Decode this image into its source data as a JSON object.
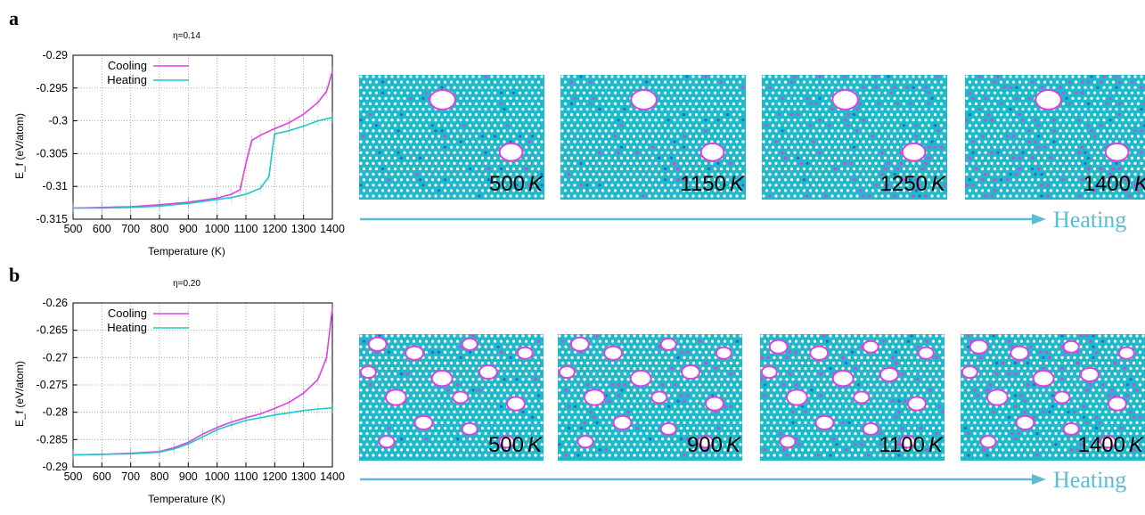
{
  "panels": [
    {
      "letter": "a",
      "heating_label": "Heating"
    },
    {
      "letter": "b",
      "heating_label": "Heating"
    }
  ],
  "colors": {
    "cooling": "#e040e0",
    "heating": "#1ec8c8",
    "arrow": "#5bbcd6",
    "atoms": "#1fb9c9",
    "void_edge": "#e040e0"
  },
  "chart_data": [
    {
      "type": "line",
      "title": "η=0.14",
      "xlabel": "Temperature (K)",
      "ylabel": "E_f (eV/atom)",
      "xlim": [
        500,
        1400
      ],
      "ylim": [
        -0.315,
        -0.29
      ],
      "xticks": [
        500,
        600,
        700,
        800,
        900,
        1000,
        1100,
        1200,
        1300,
        1400
      ],
      "yticks": [
        -0.29,
        -0.295,
        -0.3,
        -0.305,
        -0.31,
        -0.315
      ],
      "ytick_labels": [
        "-0.29",
        "-0.295",
        "-0.3",
        "-0.305",
        "-0.31",
        "-0.315"
      ],
      "grid": true,
      "legend": "top-left",
      "series": [
        {
          "name": "Cooling",
          "x": [
            500,
            600,
            700,
            800,
            900,
            1000,
            1050,
            1080,
            1100,
            1120,
            1150,
            1200,
            1250,
            1300,
            1350,
            1380,
            1400
          ],
          "y": [
            -0.3133,
            -0.3132,
            -0.3131,
            -0.3128,
            -0.3124,
            -0.3118,
            -0.3112,
            -0.3105,
            -0.3065,
            -0.303,
            -0.3022,
            -0.3012,
            -0.3003,
            -0.299,
            -0.2972,
            -0.2955,
            -0.2925
          ]
        },
        {
          "name": "Heating",
          "x": [
            500,
            600,
            700,
            800,
            900,
            1000,
            1050,
            1100,
            1150,
            1180,
            1190,
            1200,
            1250,
            1300,
            1350,
            1400
          ],
          "y": [
            -0.3133,
            -0.3133,
            -0.3132,
            -0.313,
            -0.3126,
            -0.312,
            -0.3117,
            -0.3112,
            -0.3103,
            -0.3085,
            -0.305,
            -0.302,
            -0.3015,
            -0.3008,
            -0.3,
            -0.2995
          ]
        }
      ]
    },
    {
      "type": "line",
      "title": "η=0.20",
      "xlabel": "Temperature (K)",
      "ylabel": "E_f (eV/atom)",
      "xlim": [
        500,
        1400
      ],
      "ylim": [
        -0.29,
        -0.26
      ],
      "xticks": [
        500,
        600,
        700,
        800,
        900,
        1000,
        1100,
        1200,
        1300,
        1400
      ],
      "yticks": [
        -0.26,
        -0.265,
        -0.27,
        -0.275,
        -0.28,
        -0.285,
        -0.29
      ],
      "ytick_labels": [
        "-0.26",
        "-0.265",
        "-0.27",
        "-0.275",
        "-0.28",
        "-0.285",
        "-0.29"
      ],
      "grid": true,
      "legend": "top-left",
      "series": [
        {
          "name": "Cooling",
          "x": [
            500,
            600,
            700,
            800,
            850,
            900,
            950,
            1000,
            1050,
            1100,
            1150,
            1200,
            1250,
            1300,
            1350,
            1380,
            1400
          ],
          "y": [
            -0.2878,
            -0.2877,
            -0.2875,
            -0.2872,
            -0.2865,
            -0.2855,
            -0.284,
            -0.2828,
            -0.2818,
            -0.281,
            -0.2803,
            -0.2793,
            -0.2782,
            -0.2765,
            -0.274,
            -0.27,
            -0.261
          ]
        },
        {
          "name": "Heating",
          "x": [
            500,
            600,
            700,
            800,
            850,
            900,
            950,
            1000,
            1050,
            1100,
            1150,
            1200,
            1250,
            1300,
            1350,
            1400
          ],
          "y": [
            -0.2878,
            -0.2877,
            -0.2876,
            -0.2873,
            -0.2867,
            -0.2858,
            -0.2845,
            -0.2832,
            -0.2823,
            -0.2815,
            -0.281,
            -0.2805,
            -0.2801,
            -0.2797,
            -0.2794,
            -0.2792
          ]
        }
      ]
    }
  ],
  "snapshots": [
    [
      {
        "temp": "500",
        "unit": "K",
        "voids": [
          [
            0.45,
            0.2,
            0.05
          ],
          [
            0.82,
            0.62,
            0.045
          ]
        ],
        "pink_density": 0.03
      },
      {
        "temp": "1150",
        "unit": "K",
        "voids": [
          [
            0.45,
            0.2,
            0.05
          ],
          [
            0.82,
            0.62,
            0.045
          ]
        ],
        "pink_density": 0.05
      },
      {
        "temp": "1250",
        "unit": "K",
        "voids": [
          [
            0.45,
            0.2,
            0.05
          ],
          [
            0.82,
            0.62,
            0.045
          ]
        ],
        "pink_density": 0.12
      },
      {
        "temp": "1400",
        "unit": "K",
        "voids": [
          [
            0.45,
            0.2,
            0.05
          ],
          [
            0.82,
            0.62,
            0.045
          ]
        ],
        "pink_density": 0.15
      }
    ],
    [
      {
        "temp": "500",
        "unit": "K",
        "voids": [
          [
            0.1,
            0.08,
            0.035
          ],
          [
            0.3,
            0.15,
            0.035
          ],
          [
            0.6,
            0.08,
            0.03
          ],
          [
            0.45,
            0.35,
            0.04
          ],
          [
            0.2,
            0.5,
            0.04
          ],
          [
            0.7,
            0.3,
            0.035
          ],
          [
            0.85,
            0.55,
            0.035
          ],
          [
            0.35,
            0.7,
            0.035
          ],
          [
            0.6,
            0.75,
            0.03
          ],
          [
            0.15,
            0.85,
            0.03
          ],
          [
            0.8,
            0.85,
            0.03
          ],
          [
            0.9,
            0.15,
            0.03
          ],
          [
            0.05,
            0.3,
            0.03
          ],
          [
            0.55,
            0.5,
            0.03
          ]
        ],
        "pink_density": 0.03
      },
      {
        "temp": "900",
        "unit": "K",
        "voids": [
          [
            0.12,
            0.08,
            0.035
          ],
          [
            0.3,
            0.15,
            0.035
          ],
          [
            0.6,
            0.08,
            0.03
          ],
          [
            0.45,
            0.35,
            0.04
          ],
          [
            0.2,
            0.5,
            0.04
          ],
          [
            0.72,
            0.3,
            0.035
          ],
          [
            0.85,
            0.55,
            0.035
          ],
          [
            0.35,
            0.7,
            0.035
          ],
          [
            0.6,
            0.75,
            0.03
          ],
          [
            0.15,
            0.85,
            0.03
          ],
          [
            0.8,
            0.85,
            0.03
          ],
          [
            0.9,
            0.15,
            0.03
          ],
          [
            0.05,
            0.3,
            0.03
          ],
          [
            0.55,
            0.5,
            0.03
          ]
        ],
        "pink_density": 0.05
      },
      {
        "temp": "1100",
        "unit": "K",
        "voids": [
          [
            0.1,
            0.1,
            0.035
          ],
          [
            0.32,
            0.15,
            0.035
          ],
          [
            0.6,
            0.1,
            0.03
          ],
          [
            0.45,
            0.35,
            0.04
          ],
          [
            0.2,
            0.5,
            0.04
          ],
          [
            0.7,
            0.32,
            0.035
          ],
          [
            0.85,
            0.55,
            0.035
          ],
          [
            0.35,
            0.7,
            0.035
          ],
          [
            0.6,
            0.75,
            0.03
          ],
          [
            0.15,
            0.85,
            0.03
          ],
          [
            0.8,
            0.85,
            0.03
          ],
          [
            0.9,
            0.15,
            0.03
          ],
          [
            0.05,
            0.3,
            0.03
          ],
          [
            0.55,
            0.5,
            0.03
          ]
        ],
        "pink_density": 0.08
      },
      {
        "temp": "1400",
        "unit": "K",
        "voids": [
          [
            0.1,
            0.1,
            0.035
          ],
          [
            0.32,
            0.15,
            0.035
          ],
          [
            0.6,
            0.1,
            0.03
          ],
          [
            0.45,
            0.35,
            0.04
          ],
          [
            0.2,
            0.5,
            0.04
          ],
          [
            0.7,
            0.32,
            0.035
          ],
          [
            0.85,
            0.55,
            0.035
          ],
          [
            0.35,
            0.7,
            0.035
          ],
          [
            0.6,
            0.75,
            0.03
          ],
          [
            0.15,
            0.85,
            0.03
          ],
          [
            0.8,
            0.85,
            0.03
          ],
          [
            0.9,
            0.15,
            0.03
          ],
          [
            0.05,
            0.3,
            0.03
          ],
          [
            0.55,
            0.5,
            0.03
          ]
        ],
        "pink_density": 0.12
      }
    ]
  ]
}
